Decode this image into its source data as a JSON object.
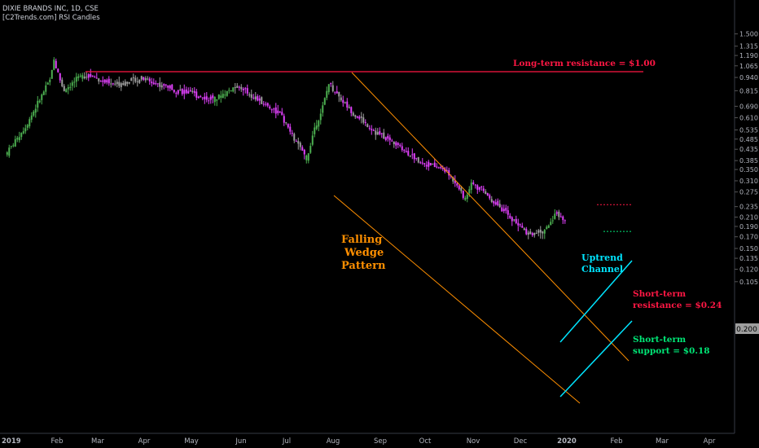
{
  "header": {
    "title": "DIXIE BRANDS INC, 1D, CSE",
    "indicator": "[C2Trends.com] RSI Candles"
  },
  "chart_data": {
    "type": "candlestick",
    "y_scale": "log",
    "y_ticks": [
      "1.500",
      "1.315",
      "1.190",
      "1.065",
      "0.940",
      "0.815",
      "0.690",
      "0.610",
      "0.535",
      "0.485",
      "0.435",
      "0.385",
      "0.350",
      "0.310",
      "0.275",
      "0.235",
      "0.210",
      "0.190",
      "0.170",
      "0.150",
      "0.135",
      "0.120",
      "0.105"
    ],
    "x_ticks": [
      "2019",
      "Feb",
      "Mar",
      "Apr",
      "May",
      "Jun",
      "Jul",
      "Aug",
      "Sep",
      "Oct",
      "Nov",
      "Dec",
      "2020",
      "Feb",
      "Mar",
      "Apr"
    ],
    "last_price": "0.200",
    "colors": {
      "bullish": "#4caf50",
      "bearish": "#e040fb",
      "neutral": "#9e9e9e",
      "wedge": "#ff8f00",
      "channel": "#00e5ff",
      "resistance": "#ff1744",
      "support": "#00e676"
    },
    "price_path": [
      {
        "x": "2019-01-02",
        "y": 0.42
      },
      {
        "x": "2019-01-15",
        "y": 0.56
      },
      {
        "x": "2019-02-01",
        "y": 0.92
      },
      {
        "x": "2019-02-03",
        "y": 1.15
      },
      {
        "x": "2019-02-10",
        "y": 0.82
      },
      {
        "x": "2019-02-25",
        "y": 0.98
      },
      {
        "x": "2019-03-15",
        "y": 0.87
      },
      {
        "x": "2019-04-05",
        "y": 0.93
      },
      {
        "x": "2019-05-01",
        "y": 0.82
      },
      {
        "x": "2019-05-25",
        "y": 0.74
      },
      {
        "x": "2019-06-10",
        "y": 0.86
      },
      {
        "x": "2019-06-25",
        "y": 0.74
      },
      {
        "x": "2019-07-10",
        "y": 0.64
      },
      {
        "x": "2019-07-22",
        "y": 0.46
      },
      {
        "x": "2019-07-29",
        "y": 0.39
      },
      {
        "x": "2019-08-03",
        "y": 0.55
      },
      {
        "x": "2019-08-08",
        "y": 0.66
      },
      {
        "x": "2019-08-13",
        "y": 0.88
      },
      {
        "x": "2019-08-28",
        "y": 0.66
      },
      {
        "x": "2019-09-15",
        "y": 0.52
      },
      {
        "x": "2019-10-01",
        "y": 0.45
      },
      {
        "x": "2019-10-15",
        "y": 0.38
      },
      {
        "x": "2019-11-01",
        "y": 0.35
      },
      {
        "x": "2019-11-10",
        "y": 0.3
      },
      {
        "x": "2019-11-15",
        "y": 0.25
      },
      {
        "x": "2019-11-20",
        "y": 0.31
      },
      {
        "x": "2019-12-05",
        "y": 0.25
      },
      {
        "x": "2019-12-20",
        "y": 0.2
      },
      {
        "x": "2019-12-30",
        "y": 0.175
      },
      {
        "x": "2020-01-10",
        "y": 0.18
      },
      {
        "x": "2020-01-17",
        "y": 0.22
      },
      {
        "x": "2020-01-24",
        "y": 0.2
      }
    ],
    "annotations": {
      "long_term_resistance": "Long-term resistance = $1.00",
      "falling_wedge": [
        "Falling",
        "Wedge",
        "Pattern"
      ],
      "uptrend_channel": [
        "Uptrend",
        "Channel"
      ],
      "short_term_resistance": [
        "Short-term",
        "resistance = $0.24"
      ],
      "short_term_support": [
        "Short-term",
        "support = $0.18"
      ]
    },
    "levels": {
      "long_term_resistance": 1.0,
      "short_term_resistance": 0.24,
      "short_term_support": 0.18
    }
  }
}
